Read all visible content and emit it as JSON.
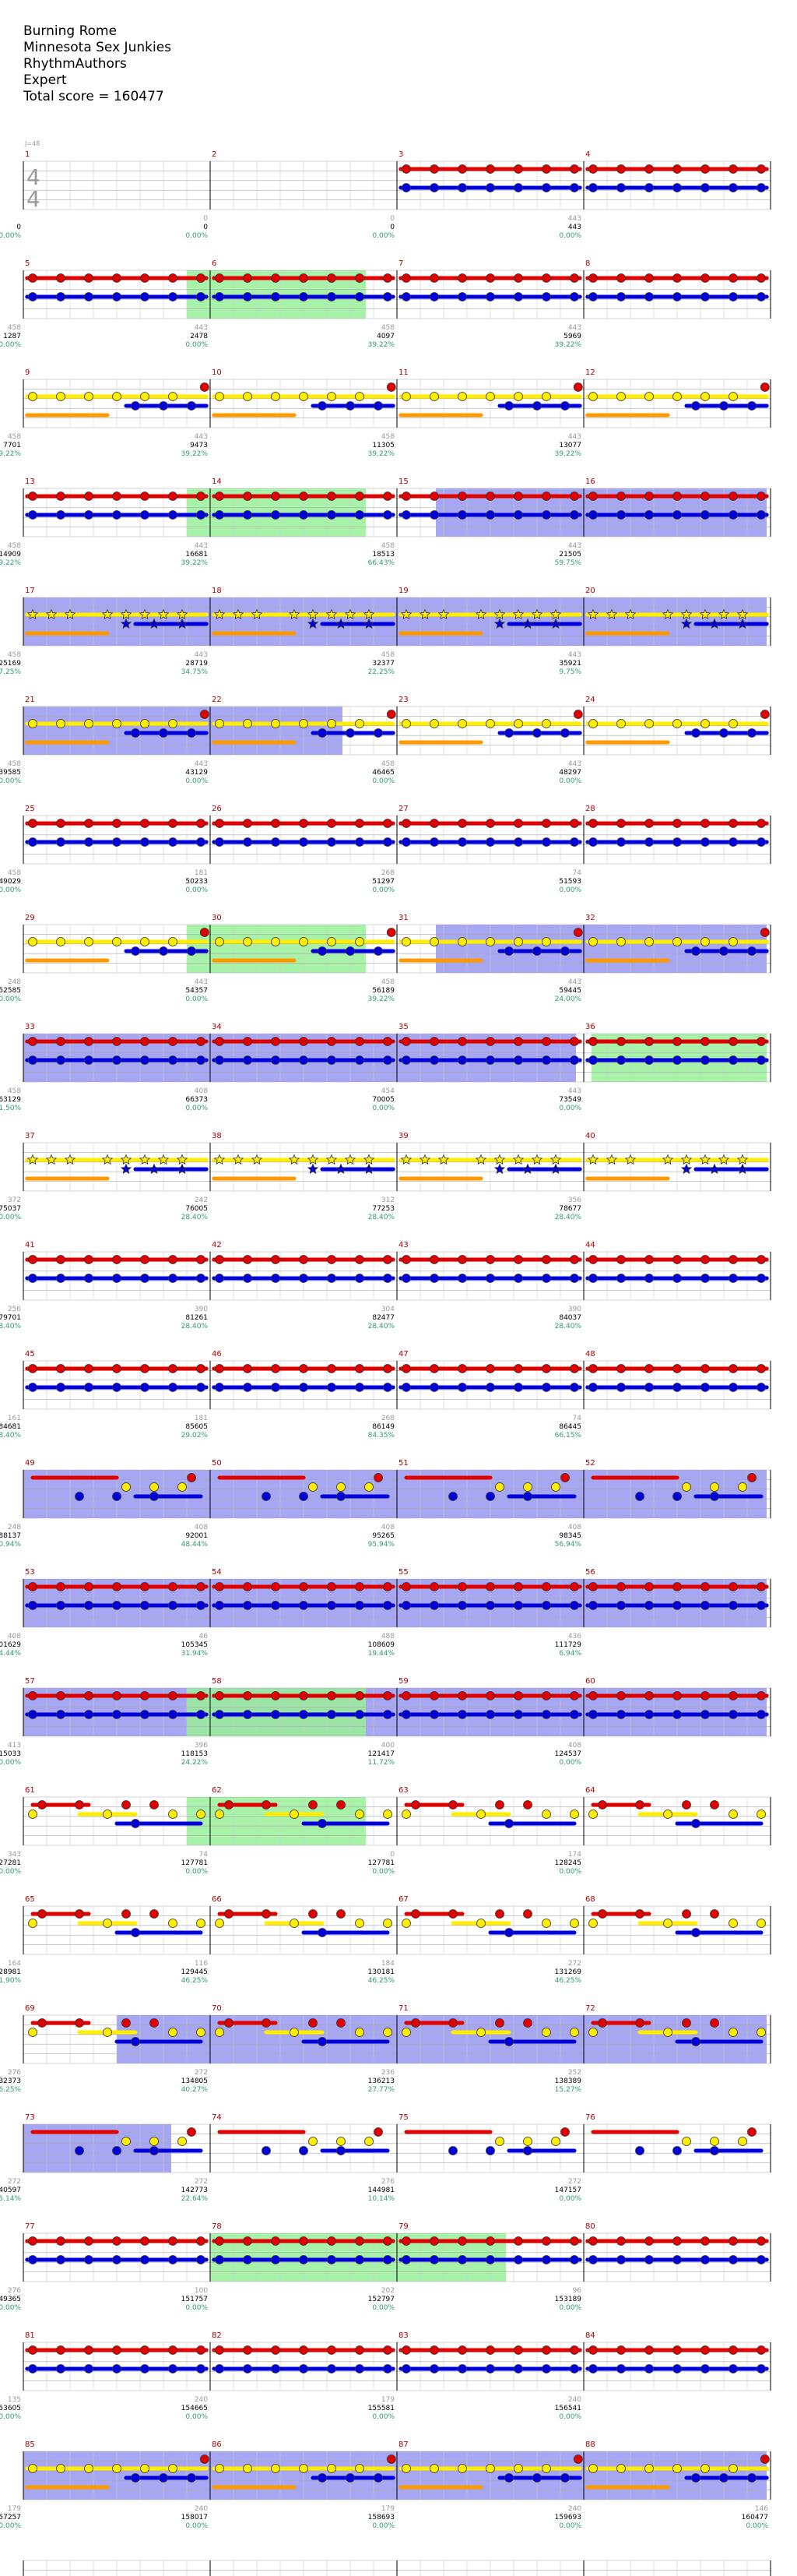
{
  "header": {
    "song": "Burning Rome",
    "artist": "Minnesota Sex Junkies",
    "charter": "RhythmAuthors",
    "difficulty": "Expert",
    "total_score": "Total score = 160477"
  },
  "tempo_label": "J=48",
  "time_signature": {
    "top": "4",
    "bottom": "4"
  },
  "colors": {
    "red": "#e00000",
    "yellow": "#ffee00",
    "blue": "#0000dd",
    "orange": "#ff9900",
    "green": "#22dd22",
    "sp_phrase": "#99ee99",
    "activation": "#8888ee",
    "score": "#000000",
    "percent": "#2e9d6b",
    "measure_number": "#aa0000",
    "bar_count": "#999999"
  },
  "measures": [
    {
      "n": "1",
      "count": "",
      "score": "0",
      "pct": "0.00%"
    },
    {
      "n": "2",
      "count": "0",
      "score": "0",
      "pct": "0.00%"
    },
    {
      "n": "3",
      "count": "0",
      "score": "0",
      "pct": "0.00%"
    },
    {
      "n": "4",
      "count": "443",
      "score": "443",
      "pct": "0.00%"
    },
    {
      "n": "5",
      "count": "458",
      "score": "1287",
      "pct": "0.00%"
    },
    {
      "n": "6",
      "count": "443",
      "score": "2478",
      "pct": "0.00%"
    },
    {
      "n": "7",
      "count": "458",
      "score": "4097",
      "pct": "39.22%"
    },
    {
      "n": "8",
      "count": "443",
      "score": "5969",
      "pct": "39.22%"
    },
    {
      "n": "9",
      "count": "458",
      "score": "7701",
      "pct": "39.22%"
    },
    {
      "n": "10",
      "count": "443",
      "score": "9473",
      "pct": "39.22%"
    },
    {
      "n": "11",
      "count": "458",
      "score": "11305",
      "pct": "39.22%"
    },
    {
      "n": "12",
      "count": "443",
      "score": "13077",
      "pct": "39.22%"
    },
    {
      "n": "13",
      "count": "458",
      "score": "14909",
      "pct": "39.22%"
    },
    {
      "n": "14",
      "count": "443",
      "score": "16681",
      "pct": "39.22%"
    },
    {
      "n": "15",
      "count": "458",
      "score": "18513",
      "pct": "66.43%"
    },
    {
      "n": "16",
      "count": "443",
      "score": "21505",
      "pct": "59.75%"
    },
    {
      "n": "17",
      "count": "458",
      "score": "25169",
      "pct": "47.25%"
    },
    {
      "n": "18",
      "count": "443",
      "score": "28719",
      "pct": "34.75%"
    },
    {
      "n": "19",
      "count": "458",
      "score": "32377",
      "pct": "22.25%"
    },
    {
      "n": "20",
      "count": "443",
      "score": "35921",
      "pct": "9.75%"
    },
    {
      "n": "21",
      "count": "458",
      "score": "39585",
      "pct": "0.00%"
    },
    {
      "n": "22",
      "count": "443",
      "score": "43129",
      "pct": "0.00%"
    },
    {
      "n": "23",
      "count": "458",
      "score": "46465",
      "pct": "0.00%"
    },
    {
      "n": "24",
      "count": "443",
      "score": "48297",
      "pct": "0.00%"
    },
    {
      "n": "25",
      "count": "458",
      "score": "49029",
      "pct": "0.00%"
    },
    {
      "n": "26",
      "count": "181",
      "score": "50233",
      "pct": "0.00%"
    },
    {
      "n": "27",
      "count": "268",
      "score": "51297",
      "pct": "0.00%"
    },
    {
      "n": "28",
      "count": "74",
      "score": "51593",
      "pct": "0.00%"
    },
    {
      "n": "29",
      "count": "248",
      "score": "52585",
      "pct": "0.00%"
    },
    {
      "n": "30",
      "count": "443",
      "score": "54357",
      "pct": "0.00%"
    },
    {
      "n": "31",
      "count": "458",
      "score": "56189",
      "pct": "39.22%"
    },
    {
      "n": "32",
      "count": "443",
      "score": "59445",
      "pct": "24.00%"
    },
    {
      "n": "33",
      "count": "458",
      "score": "63129",
      "pct": "11.50%"
    },
    {
      "n": "34",
      "count": "408",
      "score": "66373",
      "pct": "0.00%"
    },
    {
      "n": "35",
      "count": "454",
      "score": "70005",
      "pct": "0.00%"
    },
    {
      "n": "36",
      "count": "443",
      "score": "73549",
      "pct": "0.00%"
    },
    {
      "n": "37",
      "count": "372",
      "score": "75037",
      "pct": "0.00%"
    },
    {
      "n": "38",
      "count": "242",
      "score": "76005",
      "pct": "28.40%"
    },
    {
      "n": "39",
      "count": "312",
      "score": "77253",
      "pct": "28.40%"
    },
    {
      "n": "40",
      "count": "356",
      "score": "78677",
      "pct": "28.40%"
    },
    {
      "n": "41",
      "count": "256",
      "score": "79701",
      "pct": "28.40%"
    },
    {
      "n": "42",
      "count": "390",
      "score": "81261",
      "pct": "28.40%"
    },
    {
      "n": "43",
      "count": "304",
      "score": "82477",
      "pect": "",
      "pct": "28.40%"
    },
    {
      "n": "44",
      "count": "390",
      "score": "84037",
      "pct": "28.40%"
    },
    {
      "n": "45",
      "count": "161",
      "score": "84681",
      "pct": "28.40%"
    },
    {
      "n": "46",
      "count": "181",
      "score": "85605",
      "pct": "29.02%"
    },
    {
      "n": "47",
      "count": "268",
      "score": "86149",
      "pct": "84.35%"
    },
    {
      "n": "48",
      "count": "74",
      "score": "86445",
      "pct": "66.15%"
    },
    {
      "n": "49",
      "count": "248",
      "score": "88137",
      "pct": "60.94%"
    },
    {
      "n": "50",
      "count": "408",
      "score": "92001",
      "pct": "48.44%"
    },
    {
      "n": "51",
      "count": "408",
      "score": "95265",
      "pct": "95.94%"
    },
    {
      "n": "52",
      "count": "408",
      "score": "98345",
      "pct": "56.94%"
    },
    {
      "n": "53",
      "count": "408",
      "score": "101629",
      "pct": "44.44%"
    },
    {
      "n": "54",
      "count": "46",
      "score": "105345",
      "pct": "31.94%"
    },
    {
      "n": "55",
      "count": "488",
      "score": "108609",
      "pct": "19.44%"
    },
    {
      "n": "56",
      "count": "436",
      "score": "111729",
      "pct": "6.94%"
    },
    {
      "n": "57",
      "count": "413",
      "score": "115033",
      "pct": "0.00%"
    },
    {
      "n": "58",
      "count": "396",
      "score": "118153",
      "pct": "24.22%"
    },
    {
      "n": "59",
      "count": "400",
      "score": "121417",
      "pct": "11.72%"
    },
    {
      "n": "60",
      "count": "408",
      "score": "124537",
      "pct": "0.00%"
    },
    {
      "n": "61",
      "count": "343",
      "score": "127281",
      "pct": "0.00%"
    },
    {
      "n": "62",
      "count": "74",
      "score": "127781",
      "pct": "0.00%"
    },
    {
      "n": "63",
      "count": "0",
      "score": "127781",
      "pct": "0.00%"
    },
    {
      "n": "64",
      "count": "174",
      "score": "128245",
      "pct": "0.00%"
    },
    {
      "n": "65",
      "count": "164",
      "score": "128981",
      "pct": "11.90%"
    },
    {
      "n": "66",
      "count": "116",
      "score": "129445",
      "pct": "46.25%"
    },
    {
      "n": "67",
      "count": "184",
      "score": "130181",
      "pct": "46.25%"
    },
    {
      "n": "68",
      "count": "272",
      "score": "131269",
      "pct": "46.25%"
    },
    {
      "n": "69",
      "count": "276",
      "score": "132373",
      "pct": "46.25%"
    },
    {
      "n": "70",
      "count": "272",
      "score": "134805",
      "pct": "40.27%"
    },
    {
      "n": "71",
      "count": "236",
      "score": "136213",
      "pct": "27.77%"
    },
    {
      "n": "72",
      "count": "252",
      "score": "138389",
      "pct": "15.27%"
    },
    {
      "n": "73",
      "count": "272",
      "score": "140597",
      "pct": "35.14%"
    },
    {
      "n": "74",
      "count": "272",
      "score": "142773",
      "pct": "22.64%"
    },
    {
      "n": "75",
      "count": "276",
      "score": "144981",
      "pct": "10.14%"
    },
    {
      "n": "76",
      "count": "272",
      "score": "147157",
      "pct": "0.00%"
    },
    {
      "n": "77",
      "count": "276",
      "score": "149365",
      "pct": "0.00%"
    },
    {
      "n": "78",
      "count": "100",
      "score": "151757",
      "pct": "0.00%"
    },
    {
      "n": "79",
      "count": "202",
      "score": "152797",
      "pct": "0.00%"
    },
    {
      "n": "80",
      "count": "96",
      "score": "153189",
      "pct": "0.00%"
    },
    {
      "n": "81",
      "count": "135",
      "score": "153605",
      "pct": "0.00%"
    },
    {
      "n": "82",
      "count": "240",
      "score": "154665",
      "pct": "0.00%"
    },
    {
      "n": "83",
      "count": "179",
      "score": "155581",
      "pct": "0.00%"
    },
    {
      "n": "84",
      "count": "240",
      "score": "156541",
      "pct": "0.00%"
    },
    {
      "n": "85",
      "count": "179",
      "score": "157257",
      "pct": "0.00%"
    },
    {
      "n": "86",
      "count": "240",
      "score": "158017",
      "pct": "0.00%"
    },
    {
      "n": "87",
      "count": "179",
      "score": "158693",
      "pct": "0.00%"
    },
    {
      "n": "88",
      "count": "240",
      "score": "159693",
      "pct": "0.00%"
    },
    {
      "n": "",
      "count": "146",
      "score": "160477",
      "pct": "0.00%"
    }
  ]
}
